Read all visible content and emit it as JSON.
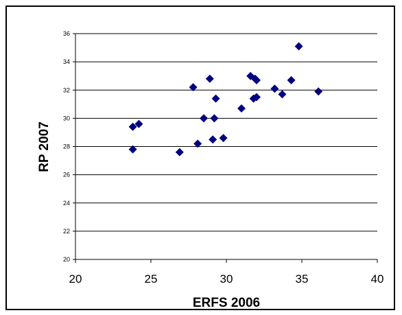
{
  "chart_data": {
    "type": "scatter",
    "title": "",
    "xlabel": "ERFS 2006",
    "ylabel": "RP 2007",
    "xlim": [
      20,
      40
    ],
    "ylim": [
      20,
      36
    ],
    "xticks": [
      20,
      25,
      30,
      35,
      40
    ],
    "yticks": [
      20,
      22,
      24,
      26,
      28,
      30,
      32,
      34,
      36
    ],
    "grid": "horizontal",
    "marker": "diamond",
    "marker_color": "#000080",
    "points": [
      {
        "x": 23.8,
        "y": 29.4
      },
      {
        "x": 23.8,
        "y": 27.8
      },
      {
        "x": 24.2,
        "y": 29.6
      },
      {
        "x": 26.9,
        "y": 27.6
      },
      {
        "x": 27.8,
        "y": 32.2
      },
      {
        "x": 28.1,
        "y": 28.2
      },
      {
        "x": 28.5,
        "y": 30.0
      },
      {
        "x": 28.9,
        "y": 32.8
      },
      {
        "x": 29.1,
        "y": 28.5
      },
      {
        "x": 29.2,
        "y": 30.0
      },
      {
        "x": 29.3,
        "y": 31.4
      },
      {
        "x": 29.8,
        "y": 28.6
      },
      {
        "x": 31.0,
        "y": 30.7
      },
      {
        "x": 31.6,
        "y": 33.0
      },
      {
        "x": 31.8,
        "y": 31.4
      },
      {
        "x": 31.9,
        "y": 32.8
      },
      {
        "x": 32.0,
        "y": 31.5
      },
      {
        "x": 32.0,
        "y": 32.7
      },
      {
        "x": 33.2,
        "y": 32.1
      },
      {
        "x": 33.7,
        "y": 31.7
      },
      {
        "x": 34.3,
        "y": 32.7
      },
      {
        "x": 34.8,
        "y": 35.1
      },
      {
        "x": 36.1,
        "y": 31.9
      }
    ]
  }
}
